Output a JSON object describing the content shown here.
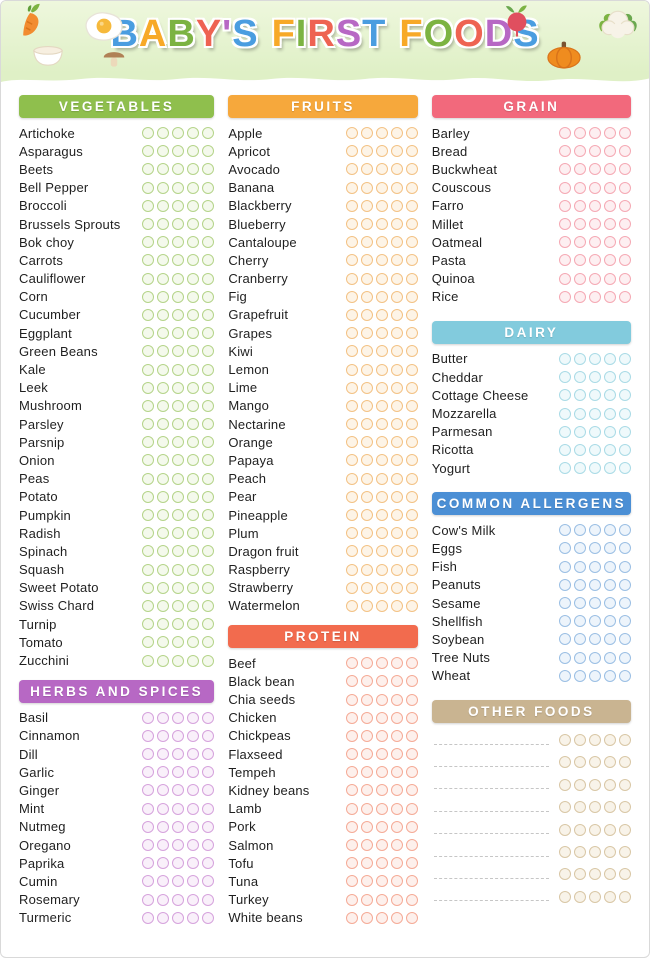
{
  "page": {
    "title": "BABY'S FIRST FOODS"
  },
  "title_palette": [
    "#4a9de0",
    "#f7a928",
    "#7cb342",
    "#ee6352",
    "#b768c4"
  ],
  "banner_color": "#dff0c6",
  "decoration_icons": [
    "carrot-icon",
    "fried-egg-icon",
    "bowl-icon",
    "mushroom-icon",
    "radish-icon",
    "pumpkin-icon",
    "cauliflower-icon"
  ],
  "circles_per_item": 5,
  "sections": {
    "vegetables": {
      "label": "VEGETABLES",
      "color": "#8fbf4d",
      "circle_border": "#b5d48a",
      "circle_fill": "#f4f9ec",
      "circles_per_item": 5,
      "items": [
        "Artichoke",
        "Asparagus",
        "Beets",
        "Bell Pepper",
        "Broccoli",
        "Brussels Sprouts",
        "Bok choy",
        "Carrots",
        "Cauliflower",
        "Corn",
        "Cucumber",
        "Eggplant",
        "Green Beans",
        "Kale",
        "Leek",
        "Mushroom",
        "Parsley",
        "Parsnip",
        "Onion",
        "Peas",
        "Potato",
        "Pumpkin",
        "Radish",
        "Spinach",
        "Squash",
        "Sweet Potato",
        "Swiss Chard",
        "Turnip",
        "Tomato",
        "Zucchini"
      ]
    },
    "herbs": {
      "label": "HERBS AND SPICES",
      "color": "#b768c4",
      "circle_border": "#d6a3dd",
      "circle_fill": "#f9f0fa",
      "circles_per_item": 5,
      "items": [
        "Basil",
        "Cinnamon",
        "Dill",
        "Garlic",
        "Ginger",
        "Mint",
        "Nutmeg",
        "Oregano",
        "Paprika",
        "Cumin",
        "Rosemary",
        "Turmeric"
      ]
    },
    "fruits": {
      "label": "FRUITS",
      "color": "#f6a83c",
      "circle_border": "#f3c285",
      "circle_fill": "#fdf4e7",
      "circles_per_item": 5,
      "items": [
        "Apple",
        "Apricot",
        "Avocado",
        "Banana",
        "Blackberry",
        "Blueberry",
        "Cantaloupe",
        "Cherry",
        "Cranberry",
        "Fig",
        "Grapefruit",
        "Grapes",
        "Kiwi",
        "Lemon",
        "Lime",
        "Mango",
        "Nectarine",
        "Orange",
        "Papaya",
        "Peach",
        "Pear",
        "Pineapple",
        "Plum",
        "Dragon fruit",
        "Raspberry",
        "Strawberry",
        "Watermelon"
      ]
    },
    "protein": {
      "label": "PROTEIN",
      "color": "#f26b4e",
      "circle_border": "#f5ab97",
      "circle_fill": "#fdf0ec",
      "circles_per_item": 5,
      "items": [
        "Beef",
        "Black bean",
        "Chia seeds",
        "Chicken",
        "Chickpeas",
        "Flaxseed",
        "Tempeh",
        "Kidney beans",
        "Lamb",
        "Pork",
        "Salmon",
        "Tofu",
        "Tuna",
        "Turkey",
        "White beans"
      ]
    },
    "grain": {
      "label": "GRAIN",
      "color": "#f2697c",
      "circle_border": "#f5a9b4",
      "circle_fill": "#fdeff1",
      "circles_per_item": 5,
      "items": [
        "Barley",
        "Bread",
        "Buckwheat",
        "Couscous",
        "Farro",
        "Millet",
        "Oatmeal",
        "Pasta",
        "Quinoa",
        "Rice"
      ]
    },
    "dairy": {
      "label": "DAIRY",
      "color": "#82cbdd",
      "circle_border": "#aadbe6",
      "circle_fill": "#eff9fb",
      "circles_per_item": 5,
      "items": [
        "Butter",
        "Cheddar",
        "Cottage Cheese",
        "Mozzarella",
        "Parmesan",
        "Ricotta",
        "Yogurt"
      ]
    },
    "allergens": {
      "label": "COMMON ALLERGENS",
      "color": "#4b8fd5",
      "circle_border": "#9bbfe4",
      "circle_fill": "#edf4fb",
      "circles_per_item": 5,
      "items": [
        "Cow's Milk",
        "Eggs",
        "Fish",
        "Peanuts",
        "Sesame",
        "Shellfish",
        "Soybean",
        "Tree Nuts",
        "Wheat"
      ]
    },
    "other": {
      "label": "OTHER FOODS",
      "color": "#c9b491",
      "circle_border": "#d9c7a6",
      "circle_fill": "#f8f3e9",
      "circles_per_item": 5,
      "items": [
        "",
        "",
        "",
        "",
        "",
        "",
        "",
        ""
      ]
    }
  }
}
